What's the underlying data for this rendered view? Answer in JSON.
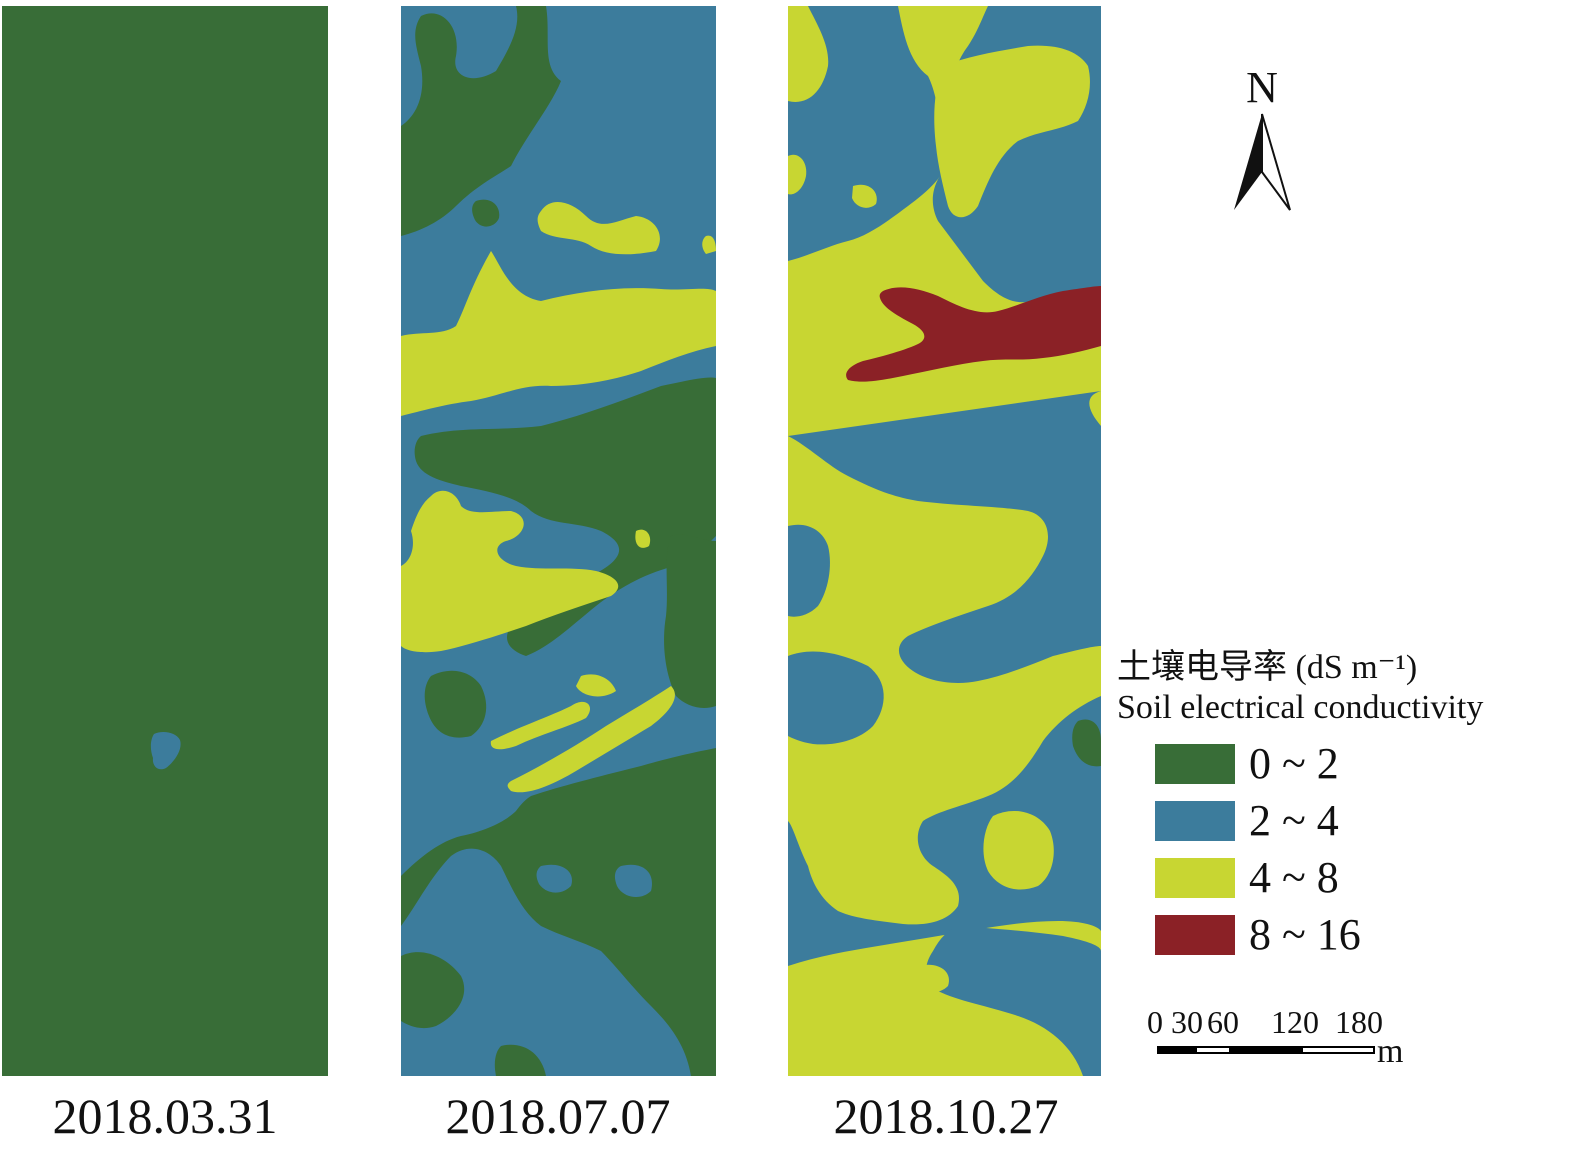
{
  "classes": [
    {
      "label": "0 ~ 2",
      "color": "#386d37"
    },
    {
      "label": "2 ~ 4",
      "color": "#3c7c9c"
    },
    {
      "label": "4 ~ 8",
      "color": "#c8d632"
    },
    {
      "label": "8 ~ 16",
      "color": "#8b2126"
    }
  ],
  "panels": [
    {
      "date": "2018.03.31",
      "base_class": "0 ~ 2"
    },
    {
      "date": "2018.07.07",
      "base_class": "2 ~ 4"
    },
    {
      "date": "2018.10.27",
      "base_class": "4 ~ 8"
    }
  ],
  "legend": {
    "title_cn": "土壤电导率 (dS m⁻¹)",
    "title_en": "Soil electrical conductivity"
  },
  "north_arrow": {
    "label": "N",
    "icon": "north-arrow-icon"
  },
  "scale_bar": {
    "ticks": [
      "0",
      "30",
      "60",
      "120",
      "180"
    ],
    "unit": "m"
  }
}
